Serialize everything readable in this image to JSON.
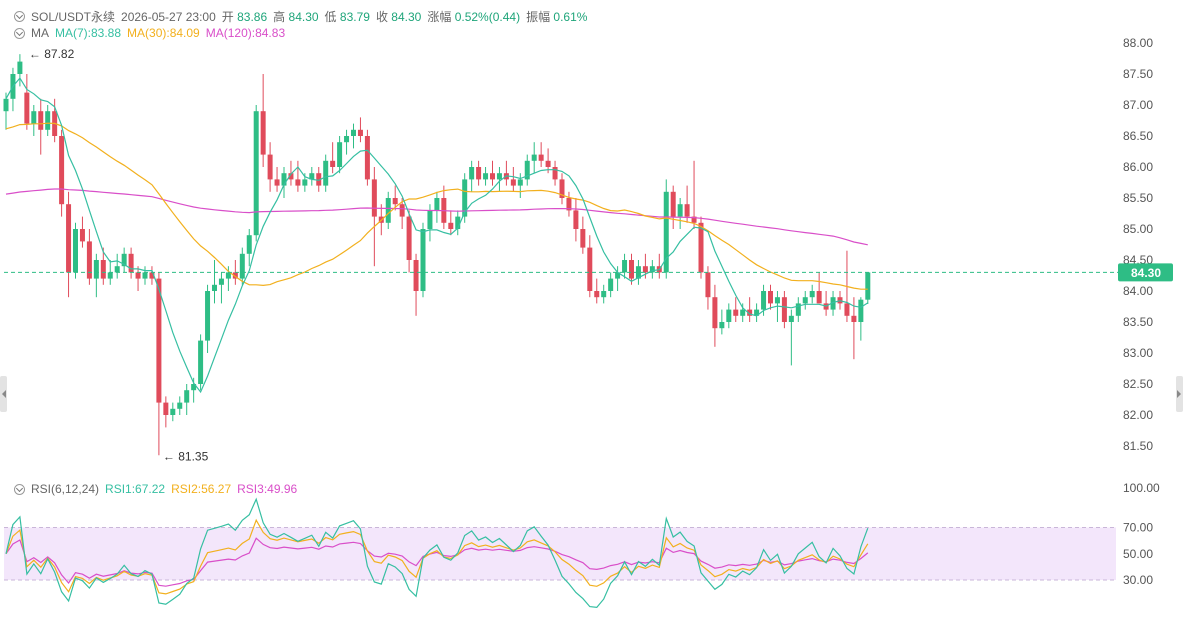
{
  "header": {
    "symbol": "SOL/USDT永续",
    "datetime": "2026-05-27 23:00",
    "open_label": "开",
    "open": "83.86",
    "high_label": "高",
    "high": "84.30",
    "low_label": "低",
    "low": "83.79",
    "close_label": "收",
    "close": "84.30",
    "change_label": "涨幅",
    "change": "0.52%(0.44)",
    "amplitude_label": "振幅",
    "amplitude": "0.61%"
  },
  "ma_legend": {
    "name": "MA",
    "ma7": "MA(7):83.88",
    "ma30": "MA(30):84.09",
    "ma120": "MA(120):84.83"
  },
  "rsi_legend": {
    "name": "RSI(6,12,24)",
    "rsi1": "RSI1:67.22",
    "rsi2": "RSI2:56.27",
    "rsi3": "RSI3:49.96"
  },
  "colors": {
    "up": "#2ebd85",
    "down": "#e04b5b",
    "ma7": "#36bfa2",
    "ma30": "#f2b01e",
    "ma120": "#d94fc9",
    "rsi1": "#36bfa2",
    "rsi2": "#f2b01e",
    "rsi3": "#d94fc9",
    "rsi_band": "#f3e6fb",
    "price_tag": "#2ebd85"
  },
  "chart_data": [
    {
      "type": "candlestick",
      "ylim": [
        81.3,
        88.1
      ],
      "y_ticks": [
        "88.00",
        "87.50",
        "87.00",
        "86.50",
        "86.00",
        "85.50",
        "85.00",
        "84.50",
        "84.00",
        "83.50",
        "83.00",
        "82.50",
        "82.00",
        "81.50"
      ],
      "annotations": {
        "high_label": "87.82",
        "low_label": "81.35"
      },
      "last_price": "84.30",
      "last_price_value": 84.3,
      "ohlc": [
        [
          86.9,
          87.2,
          86.6,
          87.1
        ],
        [
          87.1,
          87.6,
          86.9,
          87.5
        ],
        [
          87.5,
          87.82,
          87.3,
          87.7
        ],
        [
          87.2,
          87.5,
          86.6,
          86.7
        ],
        [
          86.7,
          87.0,
          86.5,
          86.9
        ],
        [
          86.9,
          87.1,
          86.2,
          86.6
        ],
        [
          86.6,
          87.0,
          86.5,
          86.9
        ],
        [
          86.9,
          87.1,
          86.4,
          86.5
        ],
        [
          86.5,
          86.6,
          85.2,
          85.4
        ],
        [
          85.4,
          85.6,
          83.9,
          84.3
        ],
        [
          84.3,
          85.1,
          84.2,
          85.0
        ],
        [
          85.0,
          85.2,
          84.7,
          84.8
        ],
        [
          84.8,
          85.0,
          84.1,
          84.2
        ],
        [
          84.2,
          84.6,
          83.9,
          84.5
        ],
        [
          84.5,
          84.7,
          84.1,
          84.2
        ],
        [
          84.2,
          84.5,
          84.1,
          84.3
        ],
        [
          84.3,
          84.6,
          84.2,
          84.4
        ],
        [
          84.4,
          84.7,
          84.3,
          84.6
        ],
        [
          84.6,
          84.7,
          84.2,
          84.3
        ],
        [
          84.3,
          84.4,
          84.0,
          84.2
        ],
        [
          84.2,
          84.4,
          84.1,
          84.3
        ],
        [
          84.3,
          84.4,
          84.1,
          84.2
        ],
        [
          84.2,
          84.3,
          81.35,
          82.2
        ],
        [
          82.2,
          82.3,
          81.8,
          82.0
        ],
        [
          82.0,
          82.2,
          81.9,
          82.1
        ],
        [
          82.1,
          82.3,
          82.0,
          82.2
        ],
        [
          82.2,
          82.5,
          82.0,
          82.4
        ],
        [
          82.4,
          82.6,
          82.2,
          82.5
        ],
        [
          82.5,
          83.3,
          82.4,
          83.2
        ],
        [
          83.2,
          84.1,
          83.0,
          84.0
        ],
        [
          84.0,
          84.5,
          83.8,
          84.1
        ],
        [
          84.1,
          84.3,
          83.8,
          84.2
        ],
        [
          84.2,
          84.4,
          84.0,
          84.3
        ],
        [
          84.3,
          84.5,
          84.1,
          84.2
        ],
        [
          84.2,
          84.7,
          84.1,
          84.6
        ],
        [
          84.6,
          85.0,
          84.4,
          84.9
        ],
        [
          84.9,
          87.0,
          84.8,
          86.9
        ],
        [
          86.9,
          87.5,
          86.0,
          86.2
        ],
        [
          86.2,
          86.4,
          85.6,
          85.8
        ],
        [
          85.8,
          86.0,
          85.6,
          85.7
        ],
        [
          85.7,
          86.0,
          85.5,
          85.9
        ],
        [
          85.9,
          86.1,
          85.7,
          85.8
        ],
        [
          85.8,
          86.1,
          85.6,
          85.7
        ],
        [
          85.7,
          85.9,
          85.6,
          85.8
        ],
        [
          85.8,
          86.0,
          85.7,
          85.9
        ],
        [
          85.9,
          86.0,
          85.6,
          85.7
        ],
        [
          85.7,
          86.2,
          85.6,
          86.1
        ],
        [
          86.1,
          86.4,
          85.9,
          86.0
        ],
        [
          86.0,
          86.5,
          85.9,
          86.4
        ],
        [
          86.4,
          86.6,
          86.2,
          86.5
        ],
        [
          86.5,
          86.7,
          86.3,
          86.6
        ],
        [
          86.6,
          86.8,
          86.4,
          86.5
        ],
        [
          86.5,
          86.6,
          85.7,
          85.8
        ],
        [
          85.8,
          86.0,
          84.4,
          85.2
        ],
        [
          85.2,
          85.4,
          84.9,
          85.1
        ],
        [
          85.1,
          85.6,
          85.0,
          85.5
        ],
        [
          85.5,
          85.7,
          85.3,
          85.4
        ],
        [
          85.4,
          85.5,
          85.0,
          85.2
        ],
        [
          85.2,
          85.3,
          84.3,
          84.5
        ],
        [
          84.5,
          84.6,
          83.6,
          84.0
        ],
        [
          84.0,
          85.1,
          83.9,
          85.0
        ],
        [
          85.0,
          85.4,
          84.8,
          85.3
        ],
        [
          85.3,
          85.6,
          85.1,
          85.5
        ],
        [
          85.5,
          85.7,
          85.0,
          85.1
        ],
        [
          85.1,
          85.3,
          84.9,
          85.0
        ],
        [
          85.0,
          85.3,
          84.9,
          85.2
        ],
        [
          85.2,
          85.9,
          85.1,
          85.8
        ],
        [
          85.8,
          86.1,
          85.6,
          86.0
        ],
        [
          86.0,
          86.1,
          85.7,
          85.8
        ],
        [
          85.8,
          86.0,
          85.7,
          85.9
        ],
        [
          85.9,
          86.1,
          85.7,
          85.8
        ],
        [
          85.8,
          86.0,
          85.6,
          85.9
        ],
        [
          85.9,
          86.1,
          85.7,
          85.8
        ],
        [
          85.8,
          86.0,
          85.6,
          85.7
        ],
        [
          85.7,
          85.9,
          85.5,
          85.8
        ],
        [
          85.8,
          86.2,
          85.7,
          86.1
        ],
        [
          86.1,
          86.4,
          85.9,
          86.2
        ],
        [
          86.2,
          86.4,
          86.0,
          86.1
        ],
        [
          86.1,
          86.3,
          85.9,
          86.0
        ],
        [
          86.0,
          86.1,
          85.7,
          85.8
        ],
        [
          85.8,
          85.9,
          85.4,
          85.5
        ],
        [
          85.5,
          85.6,
          85.2,
          85.3
        ],
        [
          85.3,
          85.5,
          84.8,
          85.0
        ],
        [
          85.0,
          85.2,
          84.6,
          84.7
        ],
        [
          84.7,
          84.9,
          83.9,
          84.0
        ],
        [
          84.0,
          84.2,
          83.8,
          83.9
        ],
        [
          83.9,
          84.1,
          83.8,
          84.0
        ],
        [
          84.0,
          84.3,
          83.9,
          84.2
        ],
        [
          84.2,
          84.4,
          84.0,
          84.3
        ],
        [
          84.3,
          84.6,
          84.2,
          84.5
        ],
        [
          84.5,
          84.6,
          84.1,
          84.2
        ],
        [
          84.2,
          84.5,
          84.1,
          84.4
        ],
        [
          84.4,
          84.6,
          84.2,
          84.3
        ],
        [
          84.3,
          84.5,
          84.2,
          84.4
        ],
        [
          84.4,
          84.6,
          84.2,
          84.3
        ],
        [
          84.3,
          85.8,
          84.2,
          85.6
        ],
        [
          85.6,
          85.7,
          85.0,
          85.2
        ],
        [
          85.2,
          85.5,
          85.0,
          85.4
        ],
        [
          85.4,
          85.7,
          85.1,
          85.2
        ],
        [
          85.2,
          86.1,
          85.0,
          85.1
        ],
        [
          85.1,
          85.2,
          84.2,
          84.3
        ],
        [
          84.3,
          84.4,
          83.7,
          83.9
        ],
        [
          83.9,
          84.1,
          83.1,
          83.4
        ],
        [
          83.4,
          83.7,
          83.3,
          83.5
        ],
        [
          83.5,
          83.8,
          83.4,
          83.7
        ],
        [
          83.7,
          83.9,
          83.5,
          83.6
        ],
        [
          83.6,
          83.8,
          83.5,
          83.7
        ],
        [
          83.7,
          83.9,
          83.5,
          83.6
        ],
        [
          83.6,
          83.8,
          83.5,
          83.7
        ],
        [
          83.7,
          84.1,
          83.6,
          84.0
        ],
        [
          84.0,
          84.1,
          83.7,
          83.8
        ],
        [
          83.8,
          84.0,
          83.5,
          83.9
        ],
        [
          83.9,
          84.0,
          83.4,
          83.5
        ],
        [
          83.5,
          83.7,
          82.8,
          83.6
        ],
        [
          83.6,
          83.9,
          83.5,
          83.8
        ],
        [
          83.8,
          84.0,
          83.7,
          83.9
        ],
        [
          83.9,
          84.1,
          83.8,
          84.0
        ],
        [
          84.0,
          84.3,
          83.8,
          83.8
        ],
        [
          83.8,
          84.0,
          83.6,
          83.7
        ],
        [
          83.7,
          84.0,
          83.6,
          83.9
        ],
        [
          83.9,
          84.0,
          83.7,
          83.8
        ],
        [
          83.8,
          84.65,
          83.5,
          83.6
        ],
        [
          83.6,
          83.9,
          82.9,
          83.5
        ],
        [
          83.5,
          83.9,
          83.2,
          83.86
        ],
        [
          83.86,
          84.3,
          83.79,
          84.3
        ]
      ]
    },
    {
      "type": "line",
      "name": "RSI(6,12,24)",
      "ylim": [
        20,
        100
      ],
      "y_ticks": [
        "100.00",
        "70.00",
        "50.00",
        "30.00"
      ],
      "band": [
        30,
        70
      ]
    }
  ]
}
